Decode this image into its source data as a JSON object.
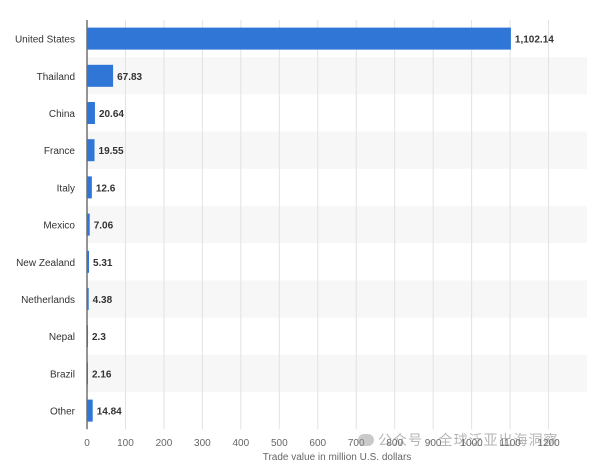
{
  "chart_data": {
    "type": "bar",
    "orientation": "horizontal",
    "categories": [
      "United States",
      "Thailand",
      "China",
      "France",
      "Italy",
      "Mexico",
      "New Zealand",
      "Netherlands",
      "Nepal",
      "Brazil",
      "Other"
    ],
    "values": [
      1102.14,
      67.83,
      20.64,
      19.55,
      12.6,
      7.06,
      5.31,
      4.38,
      2.3,
      2.16,
      14.84
    ],
    "value_labels": [
      "1,102.14",
      "67.83",
      "20.64",
      "19.55",
      "12.6",
      "7.06",
      "5.31",
      "4.38",
      "2.3",
      "2.16",
      "14.84"
    ],
    "xlabel": "Trade value in million U.S. dollars",
    "ylabel": "",
    "xlim": [
      0,
      1300
    ],
    "xticks": [
      0,
      100,
      200,
      300,
      400,
      500,
      600,
      700,
      800,
      900,
      1000,
      1100,
      1200
    ],
    "grid": true,
    "colors": {
      "bar": "#2f76d6",
      "band": "#f7f7f7",
      "grid": "#e2e2e2",
      "axis": "#2b2b2b"
    }
  },
  "watermark": {
    "text": "公众号 · 全球泛亚出海洞察"
  }
}
